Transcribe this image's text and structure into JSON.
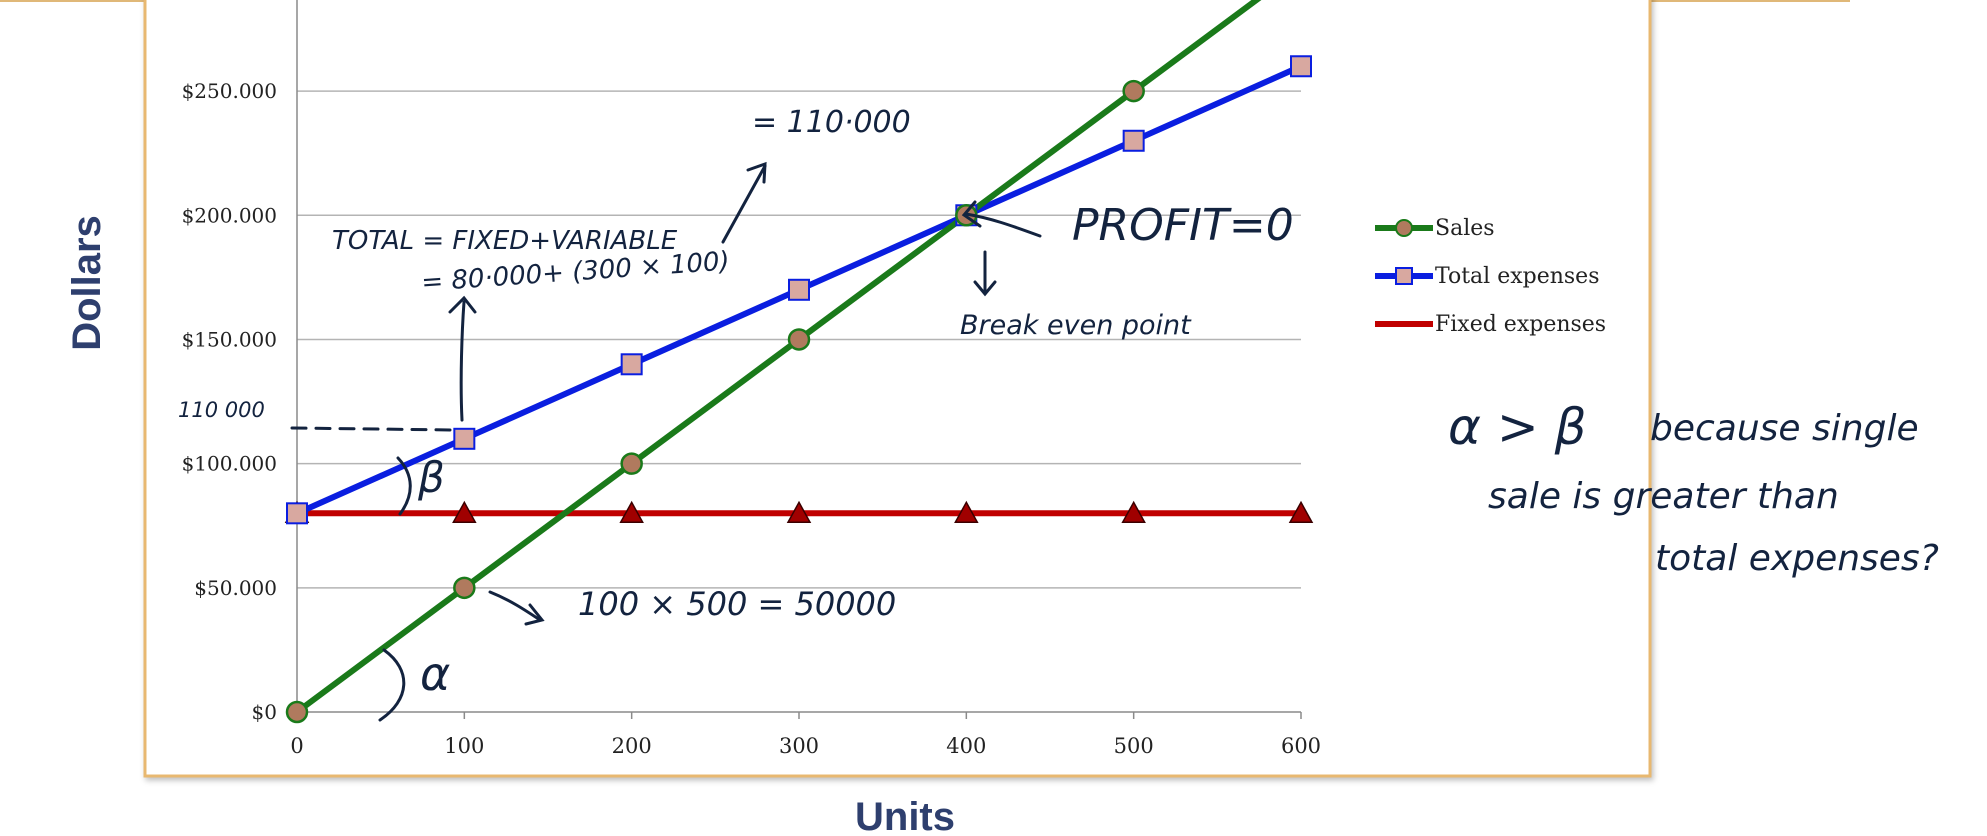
{
  "chart_data": {
    "type": "line",
    "x": [
      0,
      100,
      200,
      300,
      400,
      500,
      600
    ],
    "xlabel": "Units",
    "ylabel": "Dollars",
    "xlim": [
      0,
      600
    ],
    "ylim": [
      0,
      275000
    ],
    "x_ticks": [
      "0",
      "100",
      "200",
      "300",
      "400",
      "500",
      "600"
    ],
    "y_ticks": [
      {
        "value": 0,
        "label": "$0"
      },
      {
        "value": 50000,
        "label": "$50.000"
      },
      {
        "value": 100000,
        "label": "$100.000"
      },
      {
        "value": 150000,
        "label": "$150.000"
      },
      {
        "value": 200000,
        "label": "$200.000"
      },
      {
        "value": 250000,
        "label": "$250.000"
      }
    ],
    "grid": true,
    "legend_position": "right",
    "series": [
      {
        "name": "Sales",
        "color": "#1a7a1a",
        "marker": "circle",
        "marker_color": "#b07a5e",
        "values": [
          0,
          50000,
          100000,
          150000,
          200000,
          250000,
          300000
        ]
      },
      {
        "name": "Total expenses",
        "color": "#0a1ee0",
        "marker": "square",
        "marker_color": "#d8a8a0",
        "values": [
          80000,
          110000,
          140000,
          170000,
          200000,
          230000,
          260000
        ]
      },
      {
        "name": "Fixed expenses",
        "color": "#c00000",
        "marker": "triangle",
        "marker_color": "#a00000",
        "values": [
          80000,
          80000,
          80000,
          80000,
          80000,
          80000,
          80000
        ]
      }
    ]
  },
  "annotations": {
    "formula_line1": "TOTAL = FIXED+VARIABLE",
    "formula_line2": "= 80·000+ (300 × 100)",
    "result": "= 110·000",
    "y_note": "110 000",
    "profit": "PROFIT=0",
    "break_even": "Break even point",
    "beta": "β",
    "alpha": "α",
    "sales_calc": "100 × 500 = 50000",
    "compare_symbols": "α > β",
    "compare_line1": "because single",
    "compare_line2": "sale is greater than",
    "compare_line3": "total expenses?"
  },
  "colors": {
    "frame_border": "#e8b870",
    "grid": "#b4b4b4",
    "axis_title": "#2e3f6e",
    "ink": "#13233f"
  }
}
